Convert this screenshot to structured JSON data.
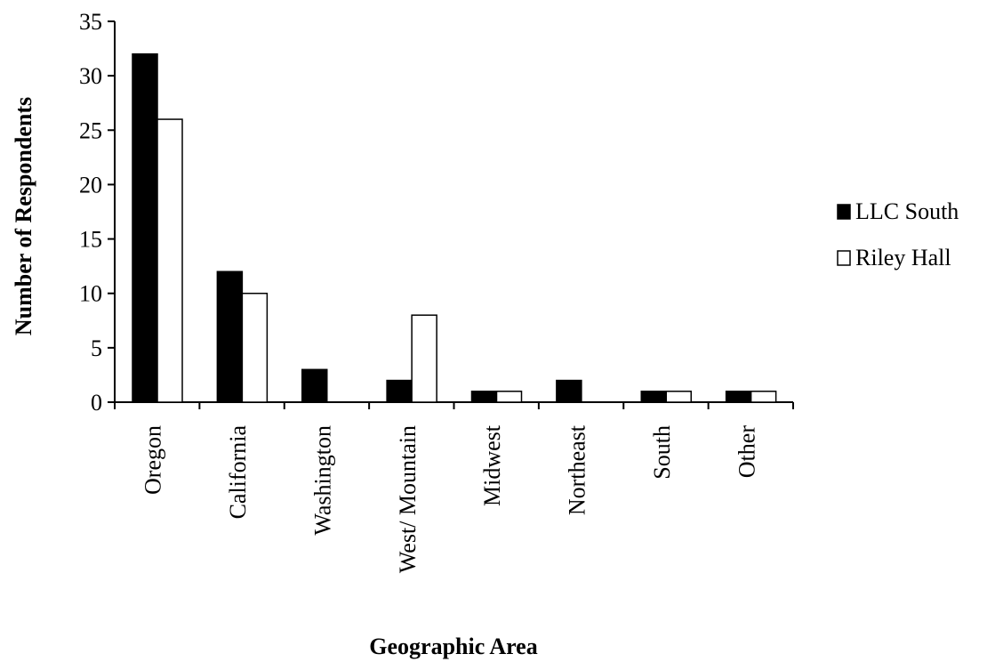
{
  "chart_data": {
    "type": "bar",
    "title": "",
    "xlabel": "Geographic Area",
    "ylabel": "Number of Respondents",
    "categories": [
      "Oregon",
      "California",
      "Washington",
      "West/ Mountain",
      "Midwest",
      "Northeast",
      "South",
      "Other"
    ],
    "series": [
      {
        "name": "LLC South",
        "values": [
          32,
          12,
          3,
          2,
          1,
          2,
          1,
          1
        ],
        "color": "#000000"
      },
      {
        "name": "Riley Hall",
        "values": [
          26,
          10,
          0,
          8,
          1,
          0,
          1,
          1
        ],
        "color": "#ffffff"
      }
    ],
    "ylim": [
      0,
      35
    ],
    "yticks": [
      0,
      5,
      10,
      15,
      20,
      25,
      30,
      35
    ],
    "grid": false,
    "legend_position": "right"
  }
}
